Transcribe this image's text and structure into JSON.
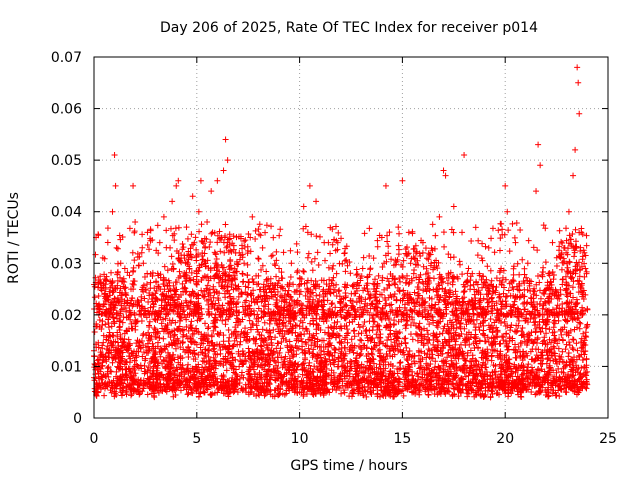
{
  "chart_data": {
    "type": "scatter",
    "title": "Day 206 of 2025, Rate Of TEC Index for receiver p014",
    "xlabel": "GPS time / hours",
    "ylabel": "ROTI / TECUs",
    "xlim": [
      0,
      25
    ],
    "ylim": [
      0,
      0.07
    ],
    "xticks": [
      0,
      5,
      10,
      15,
      20,
      25
    ],
    "xtick_labels": [
      "0",
      "5",
      "10",
      "15",
      "20",
      "25"
    ],
    "yticks": [
      0,
      0.01,
      0.02,
      0.03,
      0.04,
      0.05,
      0.06,
      0.07
    ],
    "ytick_labels": [
      "0",
      "0.01",
      "0.02",
      "0.03",
      "0.04",
      "0.05",
      "0.06",
      "0.07"
    ],
    "grid": true,
    "marker": "+",
    "marker_color": "#ff0000",
    "series": [
      {
        "name": "ROTI",
        "note": "dense cloud of points sampled across 0-24 h; representative points listed",
        "points": [
          [
            0.0,
            0.012
          ],
          [
            0.1,
            0.035
          ],
          [
            0.2,
            0.026
          ],
          [
            0.3,
            0.009
          ],
          [
            0.4,
            0.018
          ],
          [
            0.5,
            0.024
          ],
          [
            0.6,
            0.011
          ],
          [
            0.7,
            0.015
          ],
          [
            0.8,
            0.021
          ],
          [
            0.9,
            0.04
          ],
          [
            1.0,
            0.051
          ],
          [
            1.05,
            0.045
          ],
          [
            1.1,
            0.033
          ],
          [
            1.2,
            0.013
          ],
          [
            1.3,
            0.03
          ],
          [
            1.4,
            0.008
          ],
          [
            1.5,
            0.029
          ],
          [
            1.6,
            0.017
          ],
          [
            1.7,
            0.012
          ],
          [
            1.8,
            0.025
          ],
          [
            1.9,
            0.045
          ],
          [
            2.0,
            0.038
          ],
          [
            2.1,
            0.022
          ],
          [
            2.2,
            0.014
          ],
          [
            2.3,
            0.02
          ],
          [
            2.4,
            0.03
          ],
          [
            2.5,
            0.009
          ],
          [
            2.6,
            0.036
          ],
          [
            2.7,
            0.016
          ],
          [
            2.8,
            0.011
          ],
          [
            2.9,
            0.007
          ],
          [
            3.0,
            0.019
          ],
          [
            3.1,
            0.028
          ],
          [
            3.2,
            0.034
          ],
          [
            3.3,
            0.013
          ],
          [
            3.4,
            0.039
          ],
          [
            3.5,
            0.01
          ],
          [
            3.6,
            0.023
          ],
          [
            3.7,
            0.033
          ],
          [
            3.8,
            0.042
          ],
          [
            3.9,
            0.017
          ],
          [
            4.0,
            0.045
          ],
          [
            4.1,
            0.046
          ],
          [
            4.2,
            0.012
          ],
          [
            4.3,
            0.026
          ],
          [
            4.4,
            0.031
          ],
          [
            4.5,
            0.037
          ],
          [
            4.6,
            0.009
          ],
          [
            4.7,
            0.018
          ],
          [
            4.8,
            0.043
          ],
          [
            4.9,
            0.022
          ],
          [
            5.0,
            0.028
          ],
          [
            5.1,
            0.04
          ],
          [
            5.2,
            0.046
          ],
          [
            5.3,
            0.015
          ],
          [
            5.4,
            0.033
          ],
          [
            5.5,
            0.038
          ],
          [
            5.6,
            0.011
          ],
          [
            5.7,
            0.044
          ],
          [
            5.8,
            0.025
          ],
          [
            5.9,
            0.03
          ],
          [
            6.0,
            0.046
          ],
          [
            6.1,
            0.02
          ],
          [
            6.2,
            0.035
          ],
          [
            6.3,
            0.048
          ],
          [
            6.4,
            0.054
          ],
          [
            6.5,
            0.05
          ],
          [
            6.6,
            0.014
          ],
          [
            6.7,
            0.027
          ],
          [
            6.8,
            0.01
          ],
          [
            6.9,
            0.022
          ],
          [
            7.0,
            0.018
          ],
          [
            7.1,
            0.012
          ],
          [
            7.2,
            0.024
          ],
          [
            7.3,
            0.03
          ],
          [
            7.4,
            0.015
          ],
          [
            7.5,
            0.009
          ],
          [
            7.6,
            0.035
          ],
          [
            7.7,
            0.039
          ],
          [
            7.8,
            0.02
          ],
          [
            7.9,
            0.013
          ],
          [
            8.0,
            0.026
          ],
          [
            8.2,
            0.033
          ],
          [
            8.4,
            0.017
          ],
          [
            8.6,
            0.027
          ],
          [
            8.8,
            0.011
          ],
          [
            9.0,
            0.029
          ],
          [
            9.2,
            0.021
          ],
          [
            9.4,
            0.014
          ],
          [
            9.6,
            0.03
          ],
          [
            9.8,
            0.018
          ],
          [
            10.0,
            0.024
          ],
          [
            10.2,
            0.041
          ],
          [
            10.4,
            0.036
          ],
          [
            10.5,
            0.045
          ],
          [
            10.6,
            0.015
          ],
          [
            10.8,
            0.042
          ],
          [
            11.0,
            0.01
          ],
          [
            11.2,
            0.022
          ],
          [
            11.4,
            0.034
          ],
          [
            11.6,
            0.016
          ],
          [
            11.8,
            0.028
          ],
          [
            12.0,
            0.012
          ],
          [
            12.2,
            0.032
          ],
          [
            12.4,
            0.02
          ],
          [
            12.6,
            0.008
          ],
          [
            12.8,
            0.026
          ],
          [
            13.0,
            0.015
          ],
          [
            13.2,
            0.023
          ],
          [
            13.4,
            0.011
          ],
          [
            13.6,
            0.031
          ],
          [
            13.8,
            0.018
          ],
          [
            14.0,
            0.035
          ],
          [
            14.2,
            0.045
          ],
          [
            14.4,
            0.013
          ],
          [
            14.6,
            0.027
          ],
          [
            14.8,
            0.037
          ],
          [
            15.0,
            0.046
          ],
          [
            15.2,
            0.02
          ],
          [
            15.4,
            0.03
          ],
          [
            15.6,
            0.012
          ],
          [
            15.8,
            0.025
          ],
          [
            16.0,
            0.034
          ],
          [
            16.2,
            0.017
          ],
          [
            16.4,
            0.03
          ],
          [
            16.6,
            0.022
          ],
          [
            16.8,
            0.039
          ],
          [
            17.0,
            0.048
          ],
          [
            17.1,
            0.047
          ],
          [
            17.3,
            0.014
          ],
          [
            17.5,
            0.041
          ],
          [
            17.7,
            0.027
          ],
          [
            17.9,
            0.036
          ],
          [
            18.0,
            0.051
          ],
          [
            18.2,
            0.019
          ],
          [
            18.4,
            0.028
          ],
          [
            18.6,
            0.011
          ],
          [
            18.8,
            0.024
          ],
          [
            19.0,
            0.016
          ],
          [
            19.2,
            0.033
          ],
          [
            19.4,
            0.013
          ],
          [
            19.6,
            0.021
          ],
          [
            19.8,
            0.029
          ],
          [
            20.0,
            0.045
          ],
          [
            20.1,
            0.04
          ],
          [
            20.3,
            0.018
          ],
          [
            20.5,
            0.034
          ],
          [
            20.7,
            0.026
          ],
          [
            20.9,
            0.012
          ],
          [
            21.1,
            0.03
          ],
          [
            21.3,
            0.022
          ],
          [
            21.5,
            0.044
          ],
          [
            21.6,
            0.053
          ],
          [
            21.7,
            0.049
          ],
          [
            21.9,
            0.015
          ],
          [
            22.1,
            0.028
          ],
          [
            22.3,
            0.034
          ],
          [
            22.5,
            0.011
          ],
          [
            22.7,
            0.024
          ],
          [
            22.9,
            0.033
          ],
          [
            23.1,
            0.04
          ],
          [
            23.3,
            0.047
          ],
          [
            23.4,
            0.052
          ],
          [
            23.5,
            0.068
          ],
          [
            23.55,
            0.065
          ],
          [
            23.6,
            0.059
          ],
          [
            23.7,
            0.036
          ],
          [
            23.8,
            0.014
          ],
          [
            23.9,
            0.029
          ],
          [
            24.0,
            0.021
          ]
        ]
      }
    ]
  }
}
